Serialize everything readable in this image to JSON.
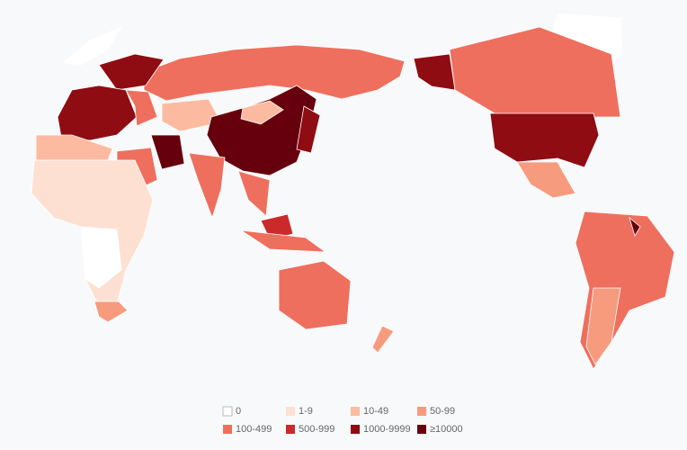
{
  "legend": {
    "items": [
      {
        "label": "0",
        "color": "#ffffff"
      },
      {
        "label": "1-9",
        "color": "#fde0d2"
      },
      {
        "label": "10-49",
        "color": "#fcbba1"
      },
      {
        "label": "50-99",
        "color": "#f79b7f"
      },
      {
        "label": "100-499",
        "color": "#ef6f5e"
      },
      {
        "label": "500-999",
        "color": "#cb2a2a"
      },
      {
        "label": "1000-9999",
        "color": "#8e0c12"
      },
      {
        "label": "≥10000",
        "color": "#67000d"
      }
    ]
  }
}
